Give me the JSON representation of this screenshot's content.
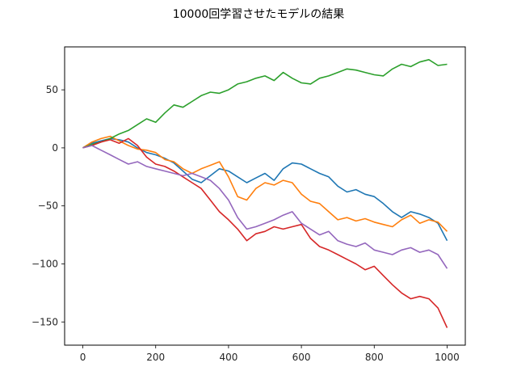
{
  "chart_data": {
    "type": "line",
    "title": "10000回学習させたモデルの結果",
    "xlabel": "",
    "ylabel": "",
    "xlim": [
      -50,
      1050
    ],
    "ylim": [
      -170,
      87
    ],
    "xticks": [
      0,
      200,
      400,
      600,
      800,
      1000
    ],
    "xtick_labels": [
      "0",
      "200",
      "400",
      "600",
      "800",
      "1000"
    ],
    "yticks": [
      50,
      0,
      -50,
      -100,
      -150
    ],
    "ytick_labels": [
      "50",
      "0",
      "−50",
      "−100",
      "−150"
    ],
    "grid": false,
    "legend": "none",
    "series": [
      {
        "color": "#1f77b4",
        "x": [
          0,
          25,
          50,
          75,
          100,
          125,
          150,
          175,
          200,
          225,
          250,
          275,
          300,
          325,
          350,
          375,
          400,
          425,
          450,
          475,
          500,
          525,
          550,
          575,
          600,
          625,
          650,
          675,
          700,
          725,
          750,
          775,
          800,
          825,
          850,
          875,
          900,
          925,
          950,
          975,
          1000
        ],
        "y": [
          0,
          4,
          6,
          8,
          7,
          5,
          0,
          -4,
          -6,
          -9,
          -13,
          -20,
          -27,
          -30,
          -24,
          -18,
          -20,
          -25,
          -30,
          -26,
          -22,
          -28,
          -18,
          -13,
          -14,
          -18,
          -22,
          -25,
          -33,
          -38,
          -36,
          -40,
          -42,
          -48,
          -55,
          -60,
          -55,
          -57,
          -60,
          -65,
          -80
        ]
      },
      {
        "color": "#ff7f0e",
        "x": [
          0,
          25,
          50,
          75,
          100,
          125,
          150,
          175,
          200,
          225,
          250,
          275,
          300,
          325,
          350,
          375,
          400,
          425,
          450,
          475,
          500,
          525,
          550,
          575,
          600,
          625,
          650,
          675,
          700,
          725,
          750,
          775,
          800,
          825,
          850,
          875,
          900,
          925,
          950,
          975,
          1000
        ],
        "y": [
          0,
          5,
          8,
          10,
          6,
          2,
          -1,
          -2,
          -4,
          -10,
          -12,
          -18,
          -22,
          -18,
          -15,
          -12,
          -25,
          -42,
          -45,
          -35,
          -30,
          -32,
          -28,
          -30,
          -40,
          -46,
          -48,
          -55,
          -62,
          -60,
          -63,
          -61,
          -64,
          -66,
          -68,
          -62,
          -58,
          -65,
          -62,
          -64,
          -72
        ]
      },
      {
        "color": "#2ca02c",
        "x": [
          0,
          25,
          50,
          75,
          100,
          125,
          150,
          175,
          200,
          225,
          250,
          275,
          300,
          325,
          350,
          375,
          400,
          425,
          450,
          475,
          500,
          525,
          550,
          575,
          600,
          625,
          650,
          675,
          700,
          725,
          750,
          775,
          800,
          825,
          850,
          875,
          900,
          925,
          950,
          975,
          1000
        ],
        "y": [
          0,
          3,
          5,
          8,
          12,
          15,
          20,
          25,
          22,
          30,
          37,
          35,
          40,
          45,
          48,
          47,
          50,
          55,
          57,
          60,
          62,
          58,
          65,
          60,
          56,
          55,
          60,
          62,
          65,
          68,
          67,
          65,
          63,
          62,
          68,
          72,
          70,
          74,
          76,
          71,
          72
        ]
      },
      {
        "color": "#d62728",
        "x": [
          0,
          25,
          50,
          75,
          100,
          125,
          150,
          175,
          200,
          225,
          250,
          275,
          300,
          325,
          350,
          375,
          400,
          425,
          450,
          475,
          500,
          525,
          550,
          575,
          600,
          625,
          650,
          675,
          700,
          725,
          750,
          775,
          800,
          825,
          850,
          875,
          900,
          925,
          950,
          975,
          1000
        ],
        "y": [
          0,
          2,
          5,
          7,
          4,
          8,
          2,
          -8,
          -14,
          -16,
          -20,
          -25,
          -30,
          -35,
          -45,
          -55,
          -62,
          -70,
          -80,
          -74,
          -72,
          -68,
          -70,
          -68,
          -66,
          -78,
          -85,
          -88,
          -92,
          -96,
          -100,
          -105,
          -102,
          -110,
          -118,
          -125,
          -130,
          -128,
          -130,
          -138,
          -155
        ]
      },
      {
        "color": "#9467bd",
        "x": [
          0,
          25,
          50,
          75,
          100,
          125,
          150,
          175,
          200,
          225,
          250,
          275,
          300,
          325,
          350,
          375,
          400,
          425,
          450,
          475,
          500,
          525,
          550,
          575,
          600,
          625,
          650,
          675,
          700,
          725,
          750,
          775,
          800,
          825,
          850,
          875,
          900,
          925,
          950,
          975,
          1000
        ],
        "y": [
          0,
          2,
          -2,
          -6,
          -10,
          -14,
          -12,
          -16,
          -18,
          -20,
          -22,
          -24,
          -22,
          -25,
          -28,
          -35,
          -45,
          -60,
          -70,
          -68,
          -65,
          -62,
          -58,
          -55,
          -65,
          -70,
          -75,
          -72,
          -80,
          -83,
          -85,
          -82,
          -88,
          -90,
          -92,
          -88,
          -86,
          -90,
          -88,
          -92,
          -104
        ]
      }
    ]
  }
}
